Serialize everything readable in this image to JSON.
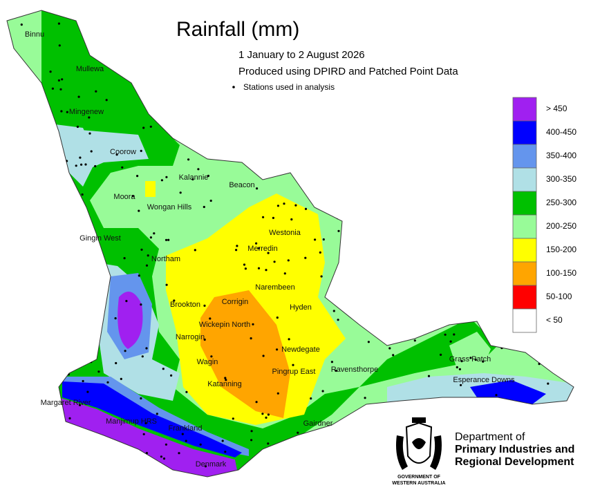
{
  "title": "Rainfall (mm)",
  "subtitle": [
    "1 January to 2 August 2026",
    "Produced using DPIRD and Patched Point Data"
  ],
  "stations_note": "Stations used in analysis",
  "legend": [
    {
      "label": "> 450",
      "color": "#a020f0"
    },
    {
      "label": "400-450",
      "color": "#0000ff"
    },
    {
      "label": "350-400",
      "color": "#6495ed"
    },
    {
      "label": "300-350",
      "color": "#b0e0e6"
    },
    {
      "label": "250-300",
      "color": "#00c000"
    },
    {
      "label": "200-250",
      "color": "#98fb98"
    },
    {
      "label": "150-200",
      "color": "#ffff00"
    },
    {
      "label": "100-150",
      "color": "#ffa500"
    },
    {
      "label": "50-100",
      "color": "#ff0000"
    },
    {
      "label": "< 50",
      "color": "#ffffff"
    }
  ],
  "places": [
    "Binnu",
    "Mullewa",
    "Mingenew",
    "Coorow",
    "Kalannie",
    "Beacon",
    "Moora",
    "Wongan Hills",
    "Westonia",
    "Gingin West",
    "Merredin",
    "Northam",
    "Narembeen",
    "Corrigin",
    "Brookton",
    "Hyden",
    "Wickepin North",
    "Narrogin",
    "Newdegate",
    "Grass Patch",
    "Wagin",
    "Pingrup East",
    "Ravensthorpe",
    "Esperance Downs",
    "Katanning",
    "Margaret River",
    "Manjimup HRS",
    "Frankland",
    "Gairdner",
    "Denmark"
  ],
  "agency": [
    "Department of",
    "Primary Industries and",
    "Regional Development"
  ],
  "crest": [
    "GOVERNMENT OF",
    "WESTERN AUSTRALIA"
  ]
}
